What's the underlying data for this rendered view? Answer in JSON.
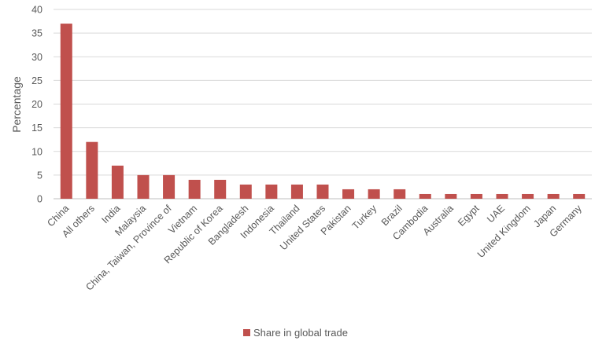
{
  "chart_data": {
    "type": "bar",
    "title": "",
    "xlabel": "",
    "ylabel": "Percentage",
    "ylim": [
      0,
      40
    ],
    "yticks": [
      0,
      5,
      10,
      15,
      20,
      25,
      30,
      35,
      40
    ],
    "grid": true,
    "legend_position": "bottom",
    "categories": [
      "China",
      "All others",
      "India",
      "Malaysia",
      "China, Taiwan, Province of",
      "Vietnam",
      "Republic of Korea",
      "Bangladesh",
      "Indonesia",
      "Thailand",
      "United States",
      "Pakistan",
      "Turkey",
      "Brazil",
      "Cambodia",
      "Australia",
      "Egypt",
      "UAE",
      "United Kingdom",
      "Japan",
      "Germany"
    ],
    "series": [
      {
        "name": "Share in global trade",
        "color": "#c0504d",
        "values": [
          37,
          12,
          7,
          5,
          5,
          4,
          4,
          3,
          3,
          3,
          3,
          2,
          2,
          2,
          1,
          1,
          1,
          1,
          1,
          1,
          1
        ]
      }
    ]
  }
}
